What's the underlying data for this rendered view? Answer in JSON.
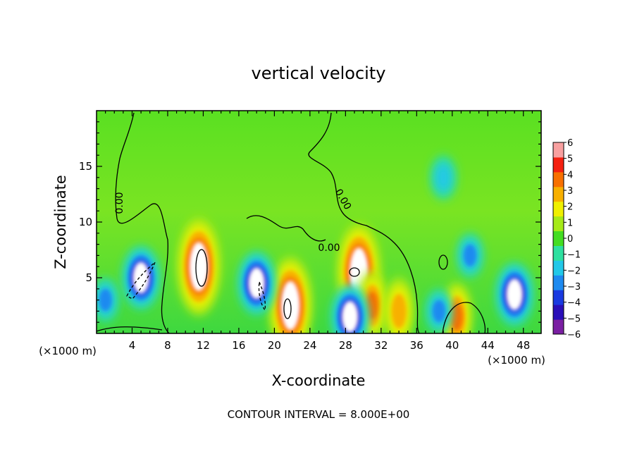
{
  "chart_data": {
    "type": "heatmap",
    "title": "vertical velocity",
    "xlabel": "X-coordinate",
    "ylabel": "Z-coordinate",
    "x_unit_label": "(×1000 m)",
    "xlim": [
      0,
      50
    ],
    "ylim": [
      0,
      20
    ],
    "x_ticks": [
      4,
      8,
      12,
      16,
      20,
      24,
      28,
      32,
      36,
      40,
      44,
      48
    ],
    "y_ticks": [
      5,
      10,
      15
    ],
    "contour_label": "0.00",
    "footer": "CONTOUR INTERVAL = 8.000E+00",
    "colorbar": {
      "min": -6,
      "max": 6,
      "ticks": [
        6,
        5,
        4,
        3,
        2,
        1,
        0,
        -1,
        -2,
        -3,
        -4,
        -5,
        -6
      ],
      "colors": [
        "#7a1fa2",
        "#2a0fb8",
        "#1a3ae0",
        "#1e8af0",
        "#22c8e8",
        "#2ee0a0",
        "#44dd22",
        "#a6ea18",
        "#f0f000",
        "#f8b000",
        "#f87000",
        "#f42010",
        "#f8a0a0"
      ]
    },
    "features": [
      {
        "kind": "updraft",
        "x": 11.5,
        "z": 6,
        "peak": 6
      },
      {
        "kind": "updraft",
        "x": 21.8,
        "z": 2.5,
        "peak": 6
      },
      {
        "kind": "updraft",
        "x": 29.5,
        "z": 5.5,
        "peak": 6
      },
      {
        "kind": "updraft",
        "x": 40.5,
        "z": 1.5,
        "peak": 4
      },
      {
        "kind": "updraft",
        "x": 31,
        "z": 2.5,
        "peak": 4
      },
      {
        "kind": "updraft",
        "x": 34,
        "z": 2,
        "peak": 3
      },
      {
        "kind": "downdraft",
        "x": 5,
        "z": 5,
        "peak": -6
      },
      {
        "kind": "downdraft",
        "x": 18,
        "z": 4.5,
        "peak": -6
      },
      {
        "kind": "downdraft",
        "x": 28.5,
        "z": 1.5,
        "peak": -6
      },
      {
        "kind": "downdraft",
        "x": 47,
        "z": 3.5,
        "peak": -6
      },
      {
        "kind": "downdraft",
        "x": 38.5,
        "z": 2,
        "peak": -3
      },
      {
        "kind": "downdraft",
        "x": 39,
        "z": 14,
        "peak": -2
      },
      {
        "kind": "downdraft",
        "x": 42,
        "z": 7,
        "peak": -3
      },
      {
        "kind": "downdraft",
        "x": 1,
        "z": 3,
        "peak": -3
      }
    ]
  }
}
